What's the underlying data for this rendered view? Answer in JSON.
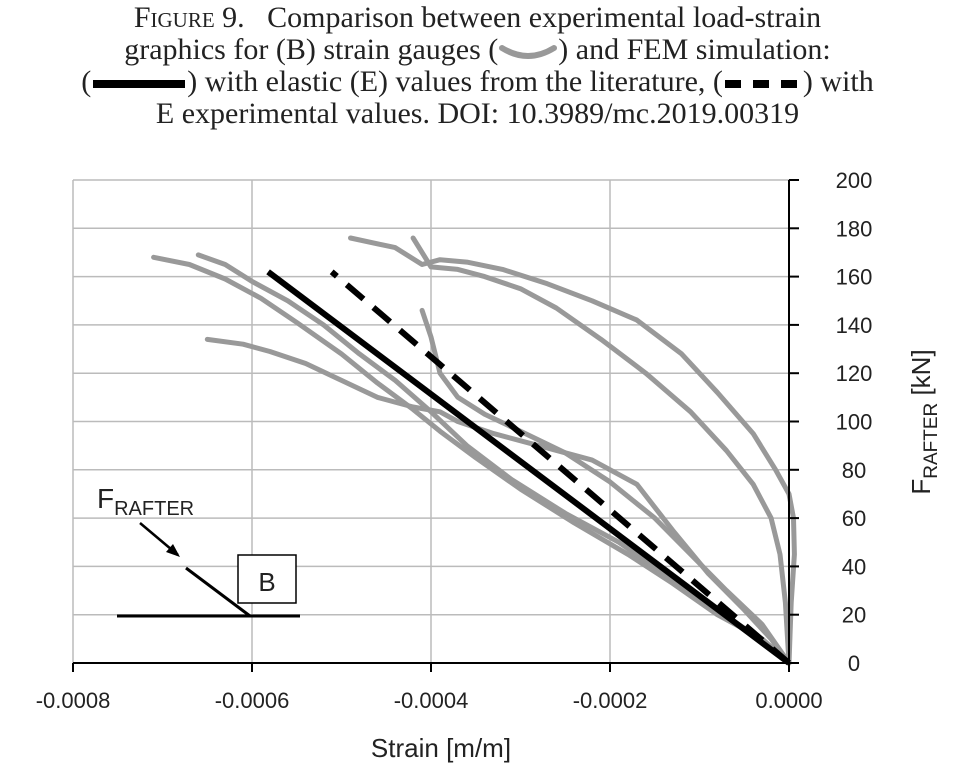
{
  "caption": {
    "figure_label": "Figure 9.",
    "line1": "Comparison between experimental load-strain",
    "line2a": "graphics for (B) strain gauges (",
    "line2b": ") and FEM simulation:",
    "line3a": "(",
    "line3b": ") with elastic (E) values from the literature, (",
    "line3c": ") with",
    "line4": "E experimental values. DOI: 10.3989/mc.2019.00319"
  },
  "colors": {
    "gauge": "#999999",
    "fem_literature": "#000000",
    "fem_experimental": "#000000",
    "grid": "#bbbbbb",
    "axis": "#000000"
  },
  "chart_data": {
    "type": "line",
    "xlabel": "Strain [m/m]",
    "ylabel_main": "F",
    "ylabel_sub": "RAFTER",
    "ylabel_unit": " [kN]",
    "xlim": [
      -0.0008,
      0.0
    ],
    "ylim": [
      0,
      200
    ],
    "x_ticks": [
      -0.0008,
      -0.0006,
      -0.0004,
      -0.0002,
      0.0
    ],
    "x_tick_labels": [
      "-0.0008",
      "-0.0006",
      "-0.0004",
      "-0.0002",
      "0.0000"
    ],
    "y_ticks": [
      0,
      20,
      40,
      60,
      80,
      100,
      120,
      140,
      160,
      180,
      200
    ],
    "y_tick_labels": [
      "0",
      "20",
      "40",
      "60",
      "80",
      "100",
      "120",
      "140",
      "160",
      "180",
      "200"
    ],
    "grid": true,
    "y_axis_side": "right",
    "series": [
      {
        "style": "gauge",
        "x": [
          0,
          -3e-05,
          -8e-05,
          -0.00013,
          -0.00018,
          -0.00024,
          -0.0003,
          -0.00035,
          -0.00039,
          -0.00042,
          -0.00046,
          -0.0005,
          -0.00055,
          -0.00059,
          -0.00063,
          -0.00067,
          -0.00071
        ],
        "y": [
          0,
          10,
          20,
          33,
          45,
          58,
          72,
          85,
          96,
          105,
          116,
          128,
          141,
          151,
          159,
          165,
          168
        ]
      },
      {
        "style": "gauge",
        "x": [
          0,
          -4e-05,
          -9e-05,
          -0.00014,
          -0.00019,
          -0.00025,
          -0.00031,
          -0.00036,
          -0.0004,
          -0.00044,
          -0.00048,
          -0.00052,
          -0.00056,
          -0.0006,
          -0.00063,
          -0.00066
        ],
        "y": [
          0,
          12,
          24,
          37,
          50,
          62,
          76,
          90,
          104,
          117,
          128,
          140,
          150,
          158,
          165,
          169
        ]
      },
      {
        "style": "gauge",
        "x": [
          0,
          -2e-05,
          -5e-05,
          -9e-05,
          -0.00013,
          -0.00017,
          -0.00022,
          -0.00028,
          -0.00033,
          -0.00037,
          -0.00039,
          -0.00042,
          -0.00046,
          -0.0005,
          -0.00054,
          -0.00058,
          -0.00061,
          -0.00065
        ],
        "y": [
          0,
          10,
          22,
          37,
          55,
          74,
          84,
          90,
          95,
          100,
          104,
          106,
          110,
          117,
          124,
          129,
          132,
          134
        ]
      },
      {
        "style": "gauge",
        "x": [
          0,
          -3e-05,
          -7e-05,
          -0.00011,
          -0.00015,
          -0.0002,
          -0.00025,
          -0.0003,
          -0.00034,
          -0.00037,
          -0.00039,
          -0.0004,
          -0.00041
        ],
        "y": [
          0,
          16,
          30,
          45,
          60,
          75,
          87,
          96,
          103,
          110,
          120,
          135,
          146
        ]
      },
      {
        "style": "gauge",
        "x": [
          0,
          2.5e-06,
          6e-06,
          5e-06,
          0,
          -1.5e-05,
          -4e-05,
          -8e-05,
          -0.00012,
          -0.00017,
          -0.00022,
          -0.00027,
          -0.00032,
          -0.00036,
          -0.00039,
          -0.00041,
          -0.00044,
          -0.00049
        ],
        "y": [
          0,
          25,
          45,
          60,
          70,
          80,
          95,
          112,
          128,
          142,
          150,
          157,
          163,
          166,
          167,
          165,
          172,
          176
        ]
      },
      {
        "style": "gauge",
        "x": [
          0,
          -4e-06,
          -1e-05,
          -2e-05,
          -4e-05,
          -7e-05,
          -0.00011,
          -0.00016,
          -0.00021,
          -0.00026,
          -0.0003,
          -0.00034,
          -0.00037,
          -0.0004,
          -0.00042
        ],
        "y": [
          0,
          25,
          45,
          60,
          74,
          88,
          104,
          120,
          134,
          147,
          155,
          160,
          163,
          164,
          176
        ]
      },
      {
        "style": "fem_literature",
        "x": [
          0,
          -0.000582
        ],
        "y": [
          0,
          162
        ]
      },
      {
        "style": "fem_experimental",
        "x": [
          0,
          -0.000511
        ],
        "y": [
          0,
          162
        ]
      }
    ]
  },
  "inset": {
    "label_main": "F",
    "label_sub": "RAFTER",
    "box_label": "B"
  }
}
